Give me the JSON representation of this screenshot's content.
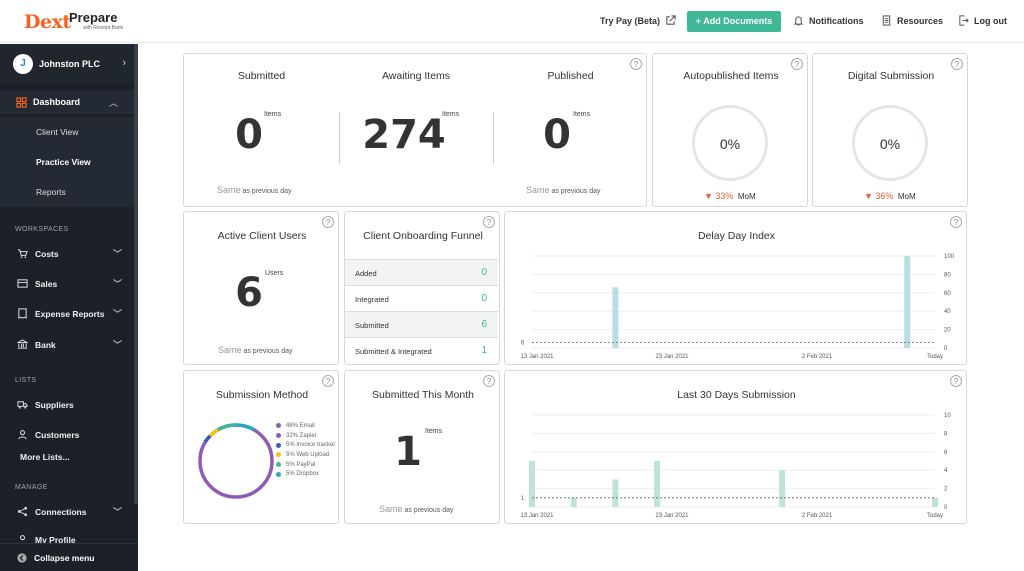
{
  "topbar": {
    "logo": "Dext",
    "product": "Prepare",
    "product_sub": "with Receipt Bank",
    "try_pay": "Try Pay (Beta)",
    "add_documents": "+ Add Documents",
    "notifications": "Notifications",
    "resources": "Resources",
    "logout": "Log out"
  },
  "sidebar": {
    "client_initial": "J",
    "client_name": "Johnston PLC",
    "dashboard": "Dashboard",
    "dashboard_items": [
      "Client View",
      "Practice View",
      "Reports"
    ],
    "workspaces_label": "WORKSPACES",
    "workspaces": [
      "Costs",
      "Sales",
      "Expense Reports",
      "Bank"
    ],
    "lists_label": "LISTS",
    "lists": [
      "Suppliers",
      "Customers"
    ],
    "more_lists": "More Lists...",
    "manage_label": "MANAGE",
    "manage": [
      "Connections",
      "My Profile"
    ],
    "collapse": "Collapse menu"
  },
  "cards": {
    "submitted": {
      "title": "Submitted",
      "value": "0",
      "unit": "Items",
      "same": "Same",
      "suffix": "as previous day"
    },
    "awaiting": {
      "title": "Awaiting Items",
      "value": "274",
      "unit": "Items"
    },
    "published": {
      "title": "Published",
      "value": "0",
      "unit": "Items",
      "same": "Same",
      "suffix": "as previous day"
    },
    "autopublished": {
      "title": "Autopublished Items",
      "value": "0%",
      "change": "33%",
      "period": "MoM"
    },
    "digital": {
      "title": "Digital Submission",
      "value": "0%",
      "change": "36%",
      "period": "MoM"
    },
    "active_users": {
      "title": "Active Client Users",
      "value": "6",
      "unit": "Users",
      "same": "Same",
      "suffix": "as previous day"
    },
    "funnel": {
      "title": "Client Onboarding Funnel",
      "rows": [
        {
          "label": "Added",
          "value": "0"
        },
        {
          "label": "Integrated",
          "value": "0"
        },
        {
          "label": "Submitted",
          "value": "6"
        },
        {
          "label": "Submitted & Integrated",
          "value": "1"
        }
      ]
    },
    "submission_method": {
      "title": "Submission Method",
      "legend": [
        "48% Email",
        "32% Zapier",
        "5% Invoice tracker",
        "5% Web Upload",
        "5% PayPal",
        "5% Dropbox"
      ],
      "legend_colors": [
        "#8e5bb5",
        "#8e5bb5",
        "#3b5bbf",
        "#f2c318",
        "#3fb898",
        "#28a9bf"
      ]
    },
    "submitted_month": {
      "title": "Submitted This Month",
      "value": "1",
      "unit": "Items",
      "same": "Same",
      "suffix": "as previous day"
    },
    "help": "?"
  },
  "chart_data": [
    {
      "type": "bar",
      "title": "Delay Day Index",
      "x_ticks": [
        "13 Jan 2021",
        "23 Jan 2021",
        "2 Feb 2021",
        "Today"
      ],
      "y_ticks": [
        "0",
        "20",
        "40",
        "60",
        "80",
        "100"
      ],
      "ylim": [
        0,
        100
      ],
      "reference_line": {
        "value": 6,
        "label": "6"
      },
      "x": [
        "2021-01-13",
        "2021-02-02"
      ],
      "series": [
        {
          "values": [
            66,
            100
          ]
        }
      ],
      "bar_days": [
        7,
        28
      ],
      "color": "#b9dde3"
    },
    {
      "type": "bar",
      "title": "Last 30 Days Submission",
      "x_ticks": [
        "13 Jan 2021",
        "23 Jan 2021",
        "2 Feb 2021",
        "Today"
      ],
      "y_ticks": [
        "0",
        "2",
        "4",
        "6",
        "8",
        "10"
      ],
      "ylim": [
        0,
        10
      ],
      "reference_line": {
        "value": 1,
        "label": "1"
      },
      "series": [
        {
          "values": [
            5,
            1,
            3,
            5,
            4,
            1
          ]
        }
      ],
      "bar_days": [
        1,
        4,
        7,
        10,
        19,
        30
      ],
      "color": "#bfe3d6"
    }
  ],
  "colors": {
    "accent": "#3fb898",
    "brand": "#f26322",
    "down": "#e0603c",
    "sidebar": "#1c2128"
  }
}
